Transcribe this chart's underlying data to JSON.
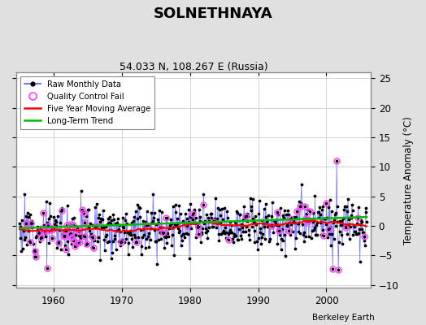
{
  "title": "SOLNETHNAYA",
  "subtitle": "54.033 N, 108.267 E (Russia)",
  "ylabel": "Temperature Anomaly (°C)",
  "attribution": "Berkeley Earth",
  "xlim": [
    1954.5,
    2006.5
  ],
  "ylim": [
    -10.5,
    26
  ],
  "yticks": [
    -10,
    -5,
    0,
    5,
    10,
    15,
    20,
    25
  ],
  "xticks": [
    1960,
    1970,
    1980,
    1990,
    2000
  ],
  "bg_color": "#e0e0e0",
  "plot_bg_color": "#ffffff",
  "raw_line_color": "#5555ff",
  "raw_dot_color": "#000000",
  "qc_fail_color": "#ff44ff",
  "moving_avg_color": "#ff0000",
  "trend_color": "#00bb00",
  "seed": 12,
  "start_year": 1955.0,
  "end_year": 2005.917,
  "n_months": 612
}
